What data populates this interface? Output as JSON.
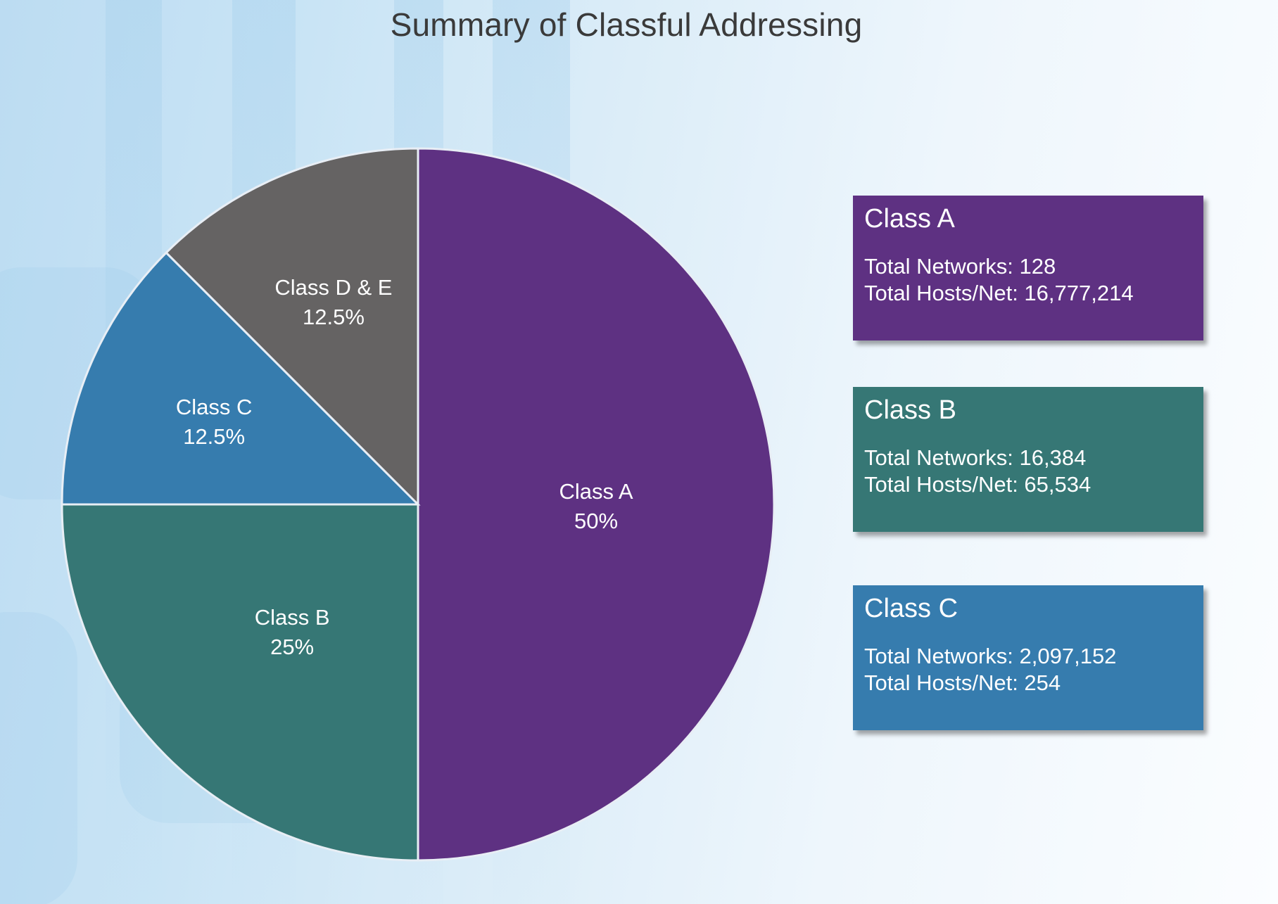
{
  "chart_data": {
    "type": "pie",
    "title": "Summary of Classful Addressing",
    "slices": [
      {
        "name": "Class A",
        "label": "50%",
        "value": 50,
        "color": "#5e3182"
      },
      {
        "name": "Class B",
        "label": "25%",
        "value": 25,
        "color": "#367775"
      },
      {
        "name": "Class C",
        "label": "12.5%",
        "value": 12.5,
        "color": "#367cae"
      },
      {
        "name": "Class D & E",
        "label": "12.5%",
        "value": 12.5,
        "color": "#656363"
      }
    ],
    "start": "12 o'clock",
    "direction": "clockwise",
    "slice_border_color": "#e8eef5"
  },
  "cards": [
    {
      "title": "Class A",
      "color": "#5e3182",
      "networks": "Total Networks: 128",
      "hosts": "Total Hosts/Net: 16,777,214"
    },
    {
      "title": "Class B",
      "color": "#367775",
      "networks": "Total Networks: 16,384",
      "hosts": "Total Hosts/Net: 65,534"
    },
    {
      "title": "Class C",
      "color": "#367cae",
      "networks": "Total Networks: 2,097,152",
      "hosts": "Total Hosts/Net: 254"
    }
  ]
}
